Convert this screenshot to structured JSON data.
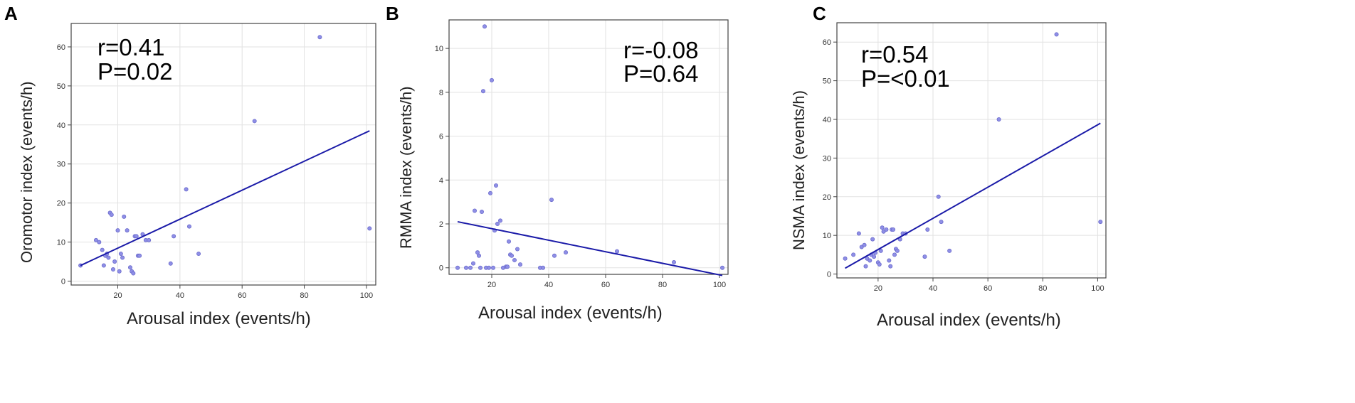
{
  "chart_data": [
    {
      "type": "scatter",
      "panel": "A",
      "xlabel": "Arousal index  (events/h)",
      "ylabel": "Oromotor index (events/h)",
      "xlim": [
        5,
        103
      ],
      "ylim": [
        -1,
        66
      ],
      "xticks": [
        20,
        40,
        60,
        80,
        100
      ],
      "yticks": [
        0,
        10,
        20,
        30,
        40,
        50,
        60
      ],
      "annotation": {
        "r": "r=0.41",
        "p": "P=0.02"
      },
      "fit_line": [
        [
          8,
          4
        ],
        [
          101,
          38.5
        ]
      ],
      "points": [
        [
          8,
          4
        ],
        [
          13,
          10.5
        ],
        [
          14,
          10
        ],
        [
          15,
          8
        ],
        [
          15.5,
          4
        ],
        [
          16,
          6.5
        ],
        [
          16.5,
          7
        ],
        [
          17,
          6
        ],
        [
          17.5,
          17.5
        ],
        [
          18,
          17
        ],
        [
          18.5,
          3
        ],
        [
          19,
          5
        ],
        [
          20,
          13
        ],
        [
          20.5,
          2.5
        ],
        [
          21,
          7
        ],
        [
          21.5,
          6
        ],
        [
          22,
          16.5
        ],
        [
          23,
          13
        ],
        [
          24,
          3.5
        ],
        [
          24.5,
          2.5
        ],
        [
          25,
          2
        ],
        [
          25.5,
          11.5
        ],
        [
          26,
          11.5
        ],
        [
          26.5,
          6.5
        ],
        [
          27,
          6.5
        ],
        [
          28,
          12
        ],
        [
          29,
          10.5
        ],
        [
          30,
          10.5
        ],
        [
          37,
          4.5
        ],
        [
          38,
          11.5
        ],
        [
          42,
          23.5
        ],
        [
          43,
          14
        ],
        [
          46,
          7
        ],
        [
          64,
          41
        ],
        [
          85,
          62.5
        ],
        [
          101,
          13.5
        ]
      ]
    },
    {
      "type": "scatter",
      "panel": "B",
      "xlabel": "Arousal index  (events/h)",
      "ylabel": "RMMA index  (events/h)",
      "xlim": [
        5,
        103
      ],
      "ylim": [
        -0.3,
        11.3
      ],
      "xticks": [
        20,
        40,
        60,
        80,
        100
      ],
      "yticks": [
        0,
        2,
        4,
        6,
        8,
        10
      ],
      "annotation": {
        "r": "r=-0.08",
        "p": "P=0.64"
      },
      "fit_line": [
        [
          8,
          2.1
        ],
        [
          101,
          -0.35
        ]
      ],
      "points": [
        [
          8,
          0
        ],
        [
          11,
          0
        ],
        [
          12.5,
          0
        ],
        [
          13.5,
          0.2
        ],
        [
          14,
          2.6
        ],
        [
          15,
          0.7
        ],
        [
          15.5,
          0.55
        ],
        [
          16,
          0
        ],
        [
          16.5,
          2.55
        ],
        [
          17,
          8.05
        ],
        [
          17.5,
          11
        ],
        [
          18,
          0
        ],
        [
          19,
          0
        ],
        [
          19.5,
          3.4
        ],
        [
          20,
          8.55
        ],
        [
          20.5,
          0
        ],
        [
          21,
          1.7
        ],
        [
          21.5,
          3.75
        ],
        [
          22,
          2
        ],
        [
          23,
          2.15
        ],
        [
          24,
          0
        ],
        [
          25,
          0.05
        ],
        [
          25.5,
          0.05
        ],
        [
          26,
          1.2
        ],
        [
          26.5,
          0.6
        ],
        [
          27,
          0.55
        ],
        [
          28,
          0.35
        ],
        [
          29,
          0.85
        ],
        [
          30,
          0.15
        ],
        [
          37,
          0
        ],
        [
          38,
          0
        ],
        [
          41,
          3.1
        ],
        [
          42,
          0.55
        ],
        [
          46,
          0.7
        ],
        [
          64,
          0.75
        ],
        [
          84,
          0.25
        ],
        [
          101,
          0
        ]
      ]
    },
    {
      "type": "scatter",
      "panel": "C",
      "xlabel": "Arousal index  (events/h)",
      "ylabel": "NSMA index (events/h)",
      "xlim": [
        5,
        103
      ],
      "ylim": [
        -1,
        65
      ],
      "xticks": [
        20,
        40,
        60,
        80,
        100
      ],
      "yticks": [
        0,
        10,
        20,
        30,
        40,
        50,
        60
      ],
      "annotation": {
        "r": "r=0.54",
        "p": "P=<0.01"
      },
      "fit_line": [
        [
          8,
          1.5
        ],
        [
          101,
          39
        ]
      ],
      "points": [
        [
          8,
          4
        ],
        [
          11,
          5
        ],
        [
          13,
          10.5
        ],
        [
          14,
          7
        ],
        [
          15,
          7.5
        ],
        [
          15.5,
          2
        ],
        [
          16,
          4
        ],
        [
          17,
          3.5
        ],
        [
          17.5,
          5
        ],
        [
          18,
          9
        ],
        [
          18.5,
          4.5
        ],
        [
          19,
          5.5
        ],
        [
          20,
          3
        ],
        [
          20.5,
          2.5
        ],
        [
          21,
          6
        ],
        [
          21.5,
          12
        ],
        [
          22,
          11
        ],
        [
          23,
          11.5
        ],
        [
          24,
          3.5
        ],
        [
          24.5,
          2
        ],
        [
          25,
          11.5
        ],
        [
          25.5,
          11.5
        ],
        [
          26,
          5
        ],
        [
          26.5,
          6.5
        ],
        [
          27,
          6
        ],
        [
          28,
          9
        ],
        [
          29,
          10.5
        ],
        [
          30,
          10.5
        ],
        [
          37,
          4.5
        ],
        [
          38,
          11.5
        ],
        [
          42,
          20
        ],
        [
          43,
          13.5
        ],
        [
          46,
          6
        ],
        [
          64,
          40
        ],
        [
          85,
          62
        ],
        [
          101,
          13.5
        ]
      ]
    }
  ]
}
